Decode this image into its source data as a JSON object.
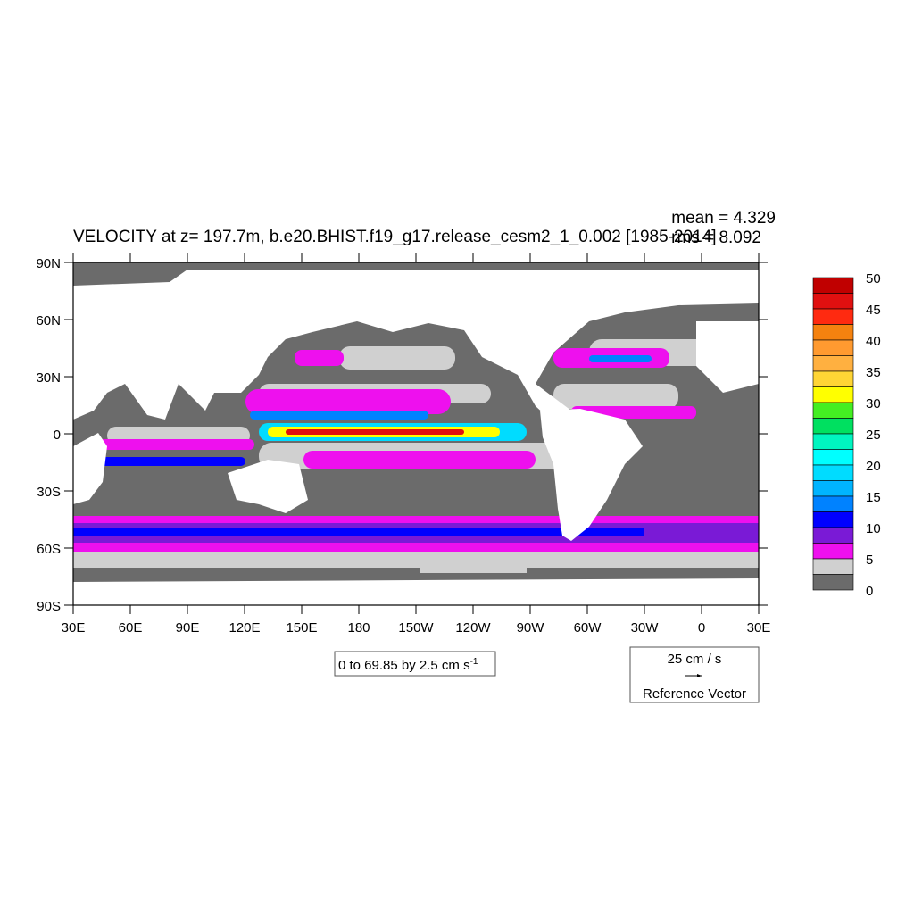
{
  "plot": {
    "title": "VELOCITY at z= 197.7m, b.e20.BHIST.f19_g17.release_cesm2_1_0.002 [1985-2014]",
    "stats": {
      "mean": "mean = 4.329",
      "rms": "rms = 8.092"
    },
    "lat_labels": [
      "90N",
      "60N",
      "30N",
      "0",
      "30S",
      "60S",
      "90S"
    ],
    "lon_labels": [
      "30E",
      "60E",
      "90E",
      "120E",
      "150E",
      "180",
      "150W",
      "120W",
      "90W",
      "60W",
      "30W",
      "0",
      "30E"
    ],
    "contour_info": "0 to 69.85 by 2.5 cm s",
    "contour_info_sup": "-1",
    "reference_vector": {
      "magnitude": "25 cm / s",
      "label": "Reference Vector"
    }
  },
  "colorbar": {
    "labels": [
      "50",
      "45",
      "40",
      "35",
      "30",
      "25",
      "20",
      "15",
      "10",
      "5",
      "0"
    ],
    "colors_top_to_bottom": [
      "#c00000",
      "#e01010",
      "#ff2a10",
      "#f5820f",
      "#ff9a30",
      "#ffb040",
      "#ffd535",
      "#ffff00",
      "#44ee22",
      "#00e060",
      "#00f5c0",
      "#00ffff",
      "#00dcff",
      "#00b4ff",
      "#0082ff",
      "#0000ff",
      "#7a1ad6",
      "#ee10ee",
      "#d0d0d0",
      "#6b6b6b"
    ]
  },
  "map_colors": {
    "land": "#ffffff",
    "low_speed": "#6b6b6b",
    "light_speed": "#d0d0d0",
    "mid_speed": "#ee10ee",
    "fast_speed": "#0000ff",
    "jet_core": "#ff2a10"
  }
}
